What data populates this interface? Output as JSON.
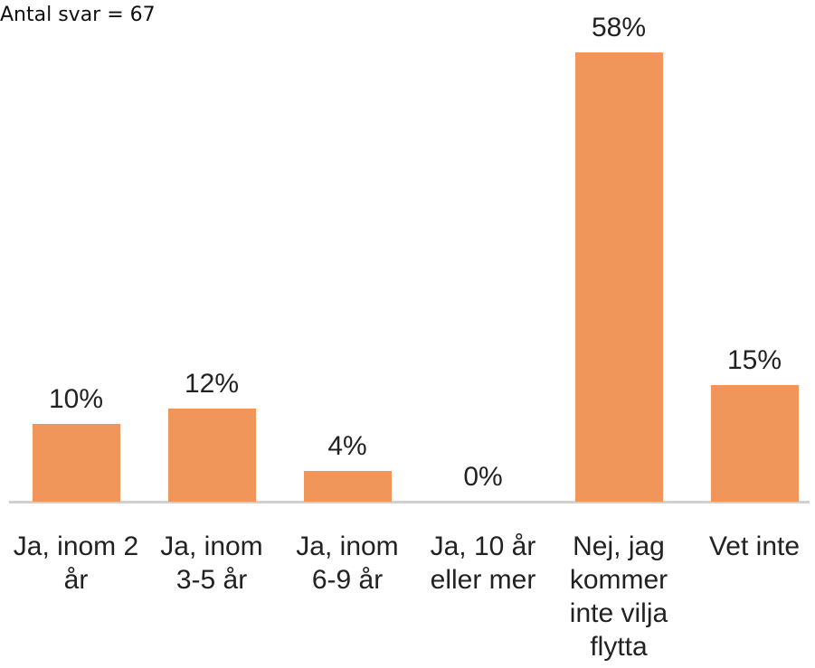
{
  "chart_data": {
    "type": "bar",
    "subtitle": "Antal svar = 67",
    "categories": [
      "Ja, inom 2 år",
      "Ja, inom 3-5 år",
      "Ja, inom 6-9 år",
      "Ja, 10 år eller mer",
      "Nej, jag kommer inte vilja flytta",
      "Vet inte"
    ],
    "values": [
      10,
      12,
      4,
      0,
      58,
      15
    ],
    "value_labels": [
      "10%",
      "12%",
      "4%",
      "0%",
      "58%",
      "15%"
    ],
    "color": "#f0965a"
  }
}
